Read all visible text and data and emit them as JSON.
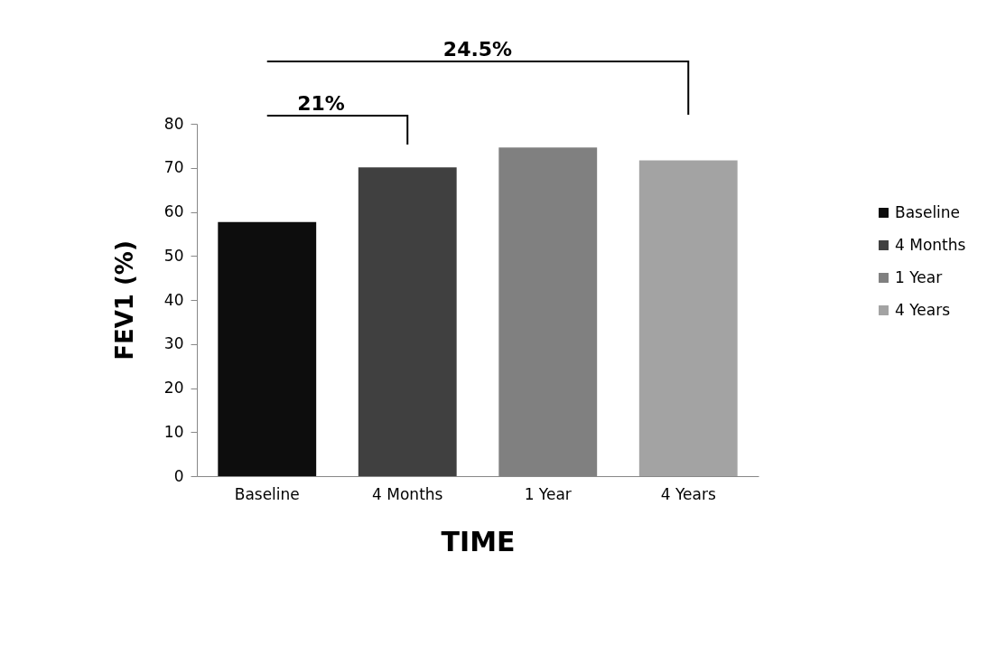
{
  "chart_data": {
    "type": "bar",
    "xlabel": "TIME",
    "ylabel": "FEV1 (%)",
    "categories": [
      "Baseline",
      "4 Months",
      "1 Year",
      "4 Years"
    ],
    "series": [
      {
        "name": "Baseline",
        "color": "#0d0d0d",
        "values": [
          57.7,
          null,
          null,
          null
        ]
      },
      {
        "name": "4 Months",
        "color": "#404040",
        "values": [
          null,
          70.1,
          null,
          null
        ]
      },
      {
        "name": "1 Year",
        "color": "#808080",
        "values": [
          null,
          null,
          74.6,
          null
        ]
      },
      {
        "name": "4 Years",
        "color": "#a3a3a3",
        "values": [
          null,
          null,
          null,
          71.7
        ]
      }
    ],
    "ylim": [
      0,
      80
    ],
    "yticks": [
      0,
      10,
      20,
      30,
      40,
      50,
      60,
      70,
      80
    ],
    "legend": "right",
    "annotations": [
      "21%",
      "24.5%"
    ]
  }
}
